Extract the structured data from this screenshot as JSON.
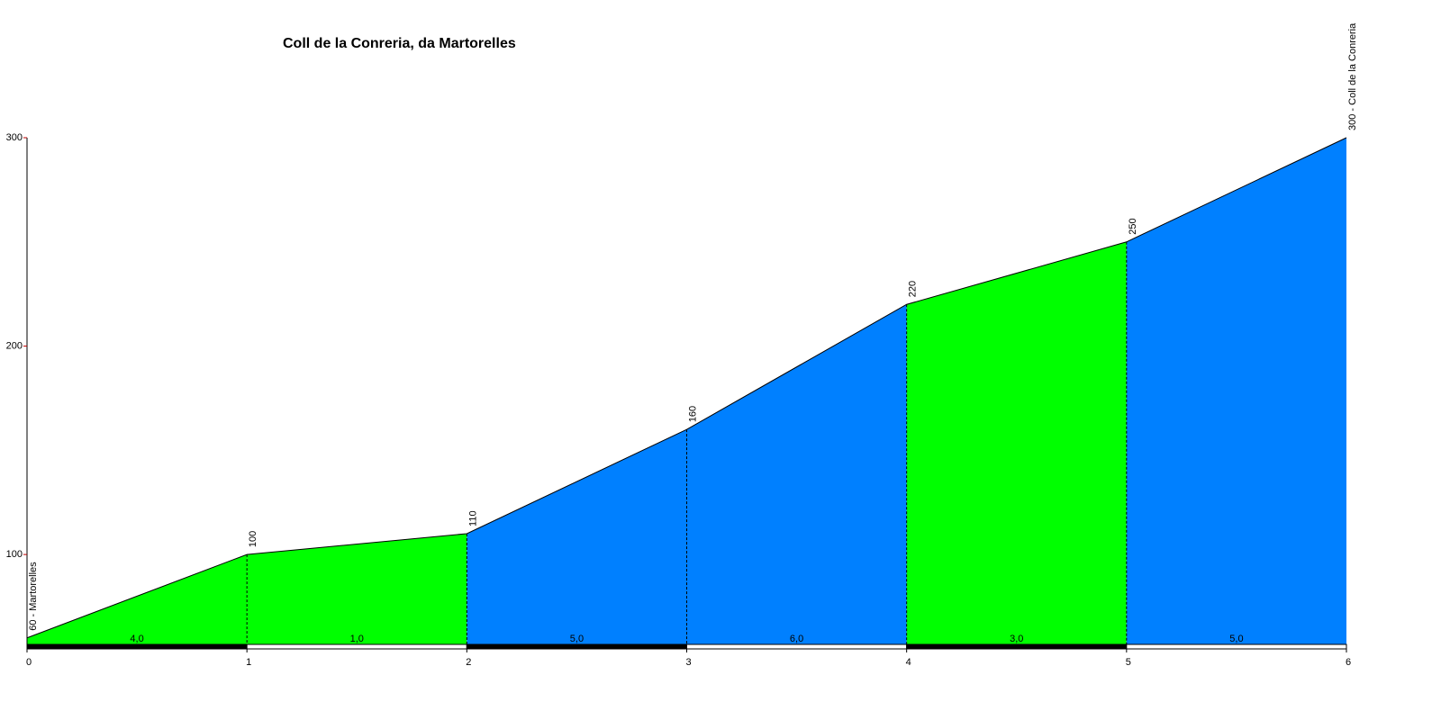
{
  "chart_data": {
    "type": "elevation-profile",
    "title": "Coll de la Conreria, da Martorelles",
    "x": [
      0,
      1,
      2,
      3,
      4,
      5,
      6
    ],
    "values": [
      60,
      100,
      110,
      160,
      220,
      250,
      300
    ],
    "value_labels": [
      "60 - Martorelles",
      "100",
      "110",
      "160",
      "220",
      "250",
      "300 - Coll de la Conreria"
    ],
    "segments": {
      "values": [
        4,
        1,
        5,
        6,
        3,
        5
      ],
      "value_labels": [
        "4,0",
        "1,0",
        "5,0",
        "6,0",
        "3,0",
        "5,0"
      ],
      "colors": [
        "#00ff00",
        "#00ff00",
        "#0080ff",
        "#0080ff",
        "#00ff00",
        "#0080ff"
      ]
    },
    "xlim": [
      0,
      6
    ],
    "xticks": [
      0,
      1,
      2,
      3,
      4,
      5,
      6
    ],
    "ylim": [
      56,
      300
    ],
    "yticks": [
      100,
      200,
      300
    ],
    "grid": false
  }
}
